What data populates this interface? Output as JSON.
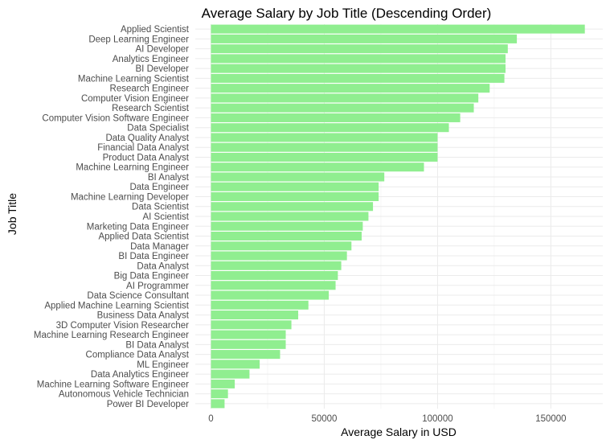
{
  "chart_data": {
    "type": "bar",
    "orientation": "horizontal",
    "title": "Average Salary by Job Title (Descending Order)",
    "xlabel": "Average Salary in USD",
    "ylabel": "Job Title",
    "xlim": [
      0,
      170000
    ],
    "xticks": [
      0,
      50000,
      100000,
      150000
    ],
    "xtick_labels": [
      "0",
      "50000",
      "100000",
      "150000"
    ],
    "grid": true,
    "legend": "none",
    "bar_color": "#90ee90",
    "categories": [
      "Applied Scientist",
      "Deep Learning Engineer",
      "AI Developer",
      "Analytics Engineer",
      "BI Developer",
      "Machine Learning Scientist",
      "Research Engineer",
      "Computer Vision Engineer",
      "Research Scientist",
      "Computer Vision Software Engineer",
      "Data Specialist",
      "Data Quality Analyst",
      "Financial Data Analyst",
      "Product Data Analyst",
      "Machine Learning Engineer",
      "BI Analyst",
      "Data Engineer",
      "Machine Learning Developer",
      "Data Scientist",
      "AI Scientist",
      "Marketing Data Engineer",
      "Applied Data Scientist",
      "Data Manager",
      "BI Data Engineer",
      "Data Analyst",
      "Big Data Engineer",
      "AI Programmer",
      "Data Science Consultant",
      "Applied Machine Learning Scientist",
      "Business Data Analyst",
      "3D Computer Vision Researcher",
      "Machine Learning Research Engineer",
      "BI Data Analyst",
      "Compliance Data Analyst",
      "ML Engineer",
      "Data Analytics Engineer",
      "Machine Learning Software Engineer",
      "Autonomous Vehicle Technician",
      "Power BI Developer"
    ],
    "values": [
      165000,
      135000,
      131000,
      130000,
      130000,
      129500,
      123000,
      118000,
      116000,
      110000,
      105000,
      100000,
      100000,
      100000,
      94000,
      76500,
      74000,
      74000,
      71500,
      69500,
      67000,
      66500,
      62000,
      60000,
      57500,
      56000,
      55000,
      52000,
      43000,
      38500,
      35500,
      33000,
      33000,
      30500,
      21500,
      17000,
      10500,
      7500,
      6000
    ]
  }
}
